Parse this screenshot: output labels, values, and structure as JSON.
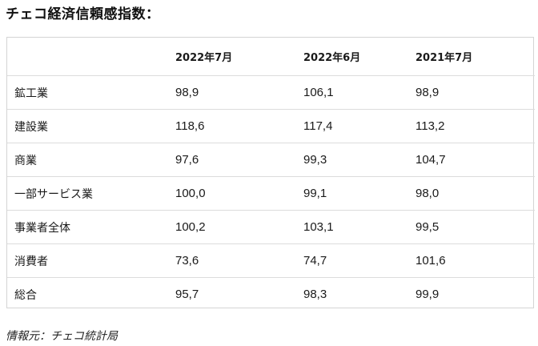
{
  "title": "チェコ経済信頼感指数：",
  "table": {
    "headers": [
      "",
      "2022年7月",
      "2022年6月",
      "2021年7月"
    ],
    "rows": [
      {
        "label": "鉱工業",
        "values": [
          "98,9",
          "106,1",
          "98,9"
        ]
      },
      {
        "label": "建設業",
        "values": [
          "118,6",
          "117,4",
          "113,2"
        ]
      },
      {
        "label": "商業",
        "values": [
          "97,6",
          "99,3",
          "104,7"
        ]
      },
      {
        "label": "一部サービス業",
        "values": [
          "100,0",
          "99,1",
          "98,0"
        ]
      },
      {
        "label": "事業者全体",
        "values": [
          "100,2",
          "103,1",
          "99,5"
        ]
      },
      {
        "label": "消費者",
        "values": [
          "73,6",
          "74,7",
          "101,6"
        ]
      },
      {
        "label": "総合",
        "values": [
          "95,7",
          "98,3",
          "99,9"
        ]
      }
    ]
  },
  "source": "情報元：チェコ統計局"
}
